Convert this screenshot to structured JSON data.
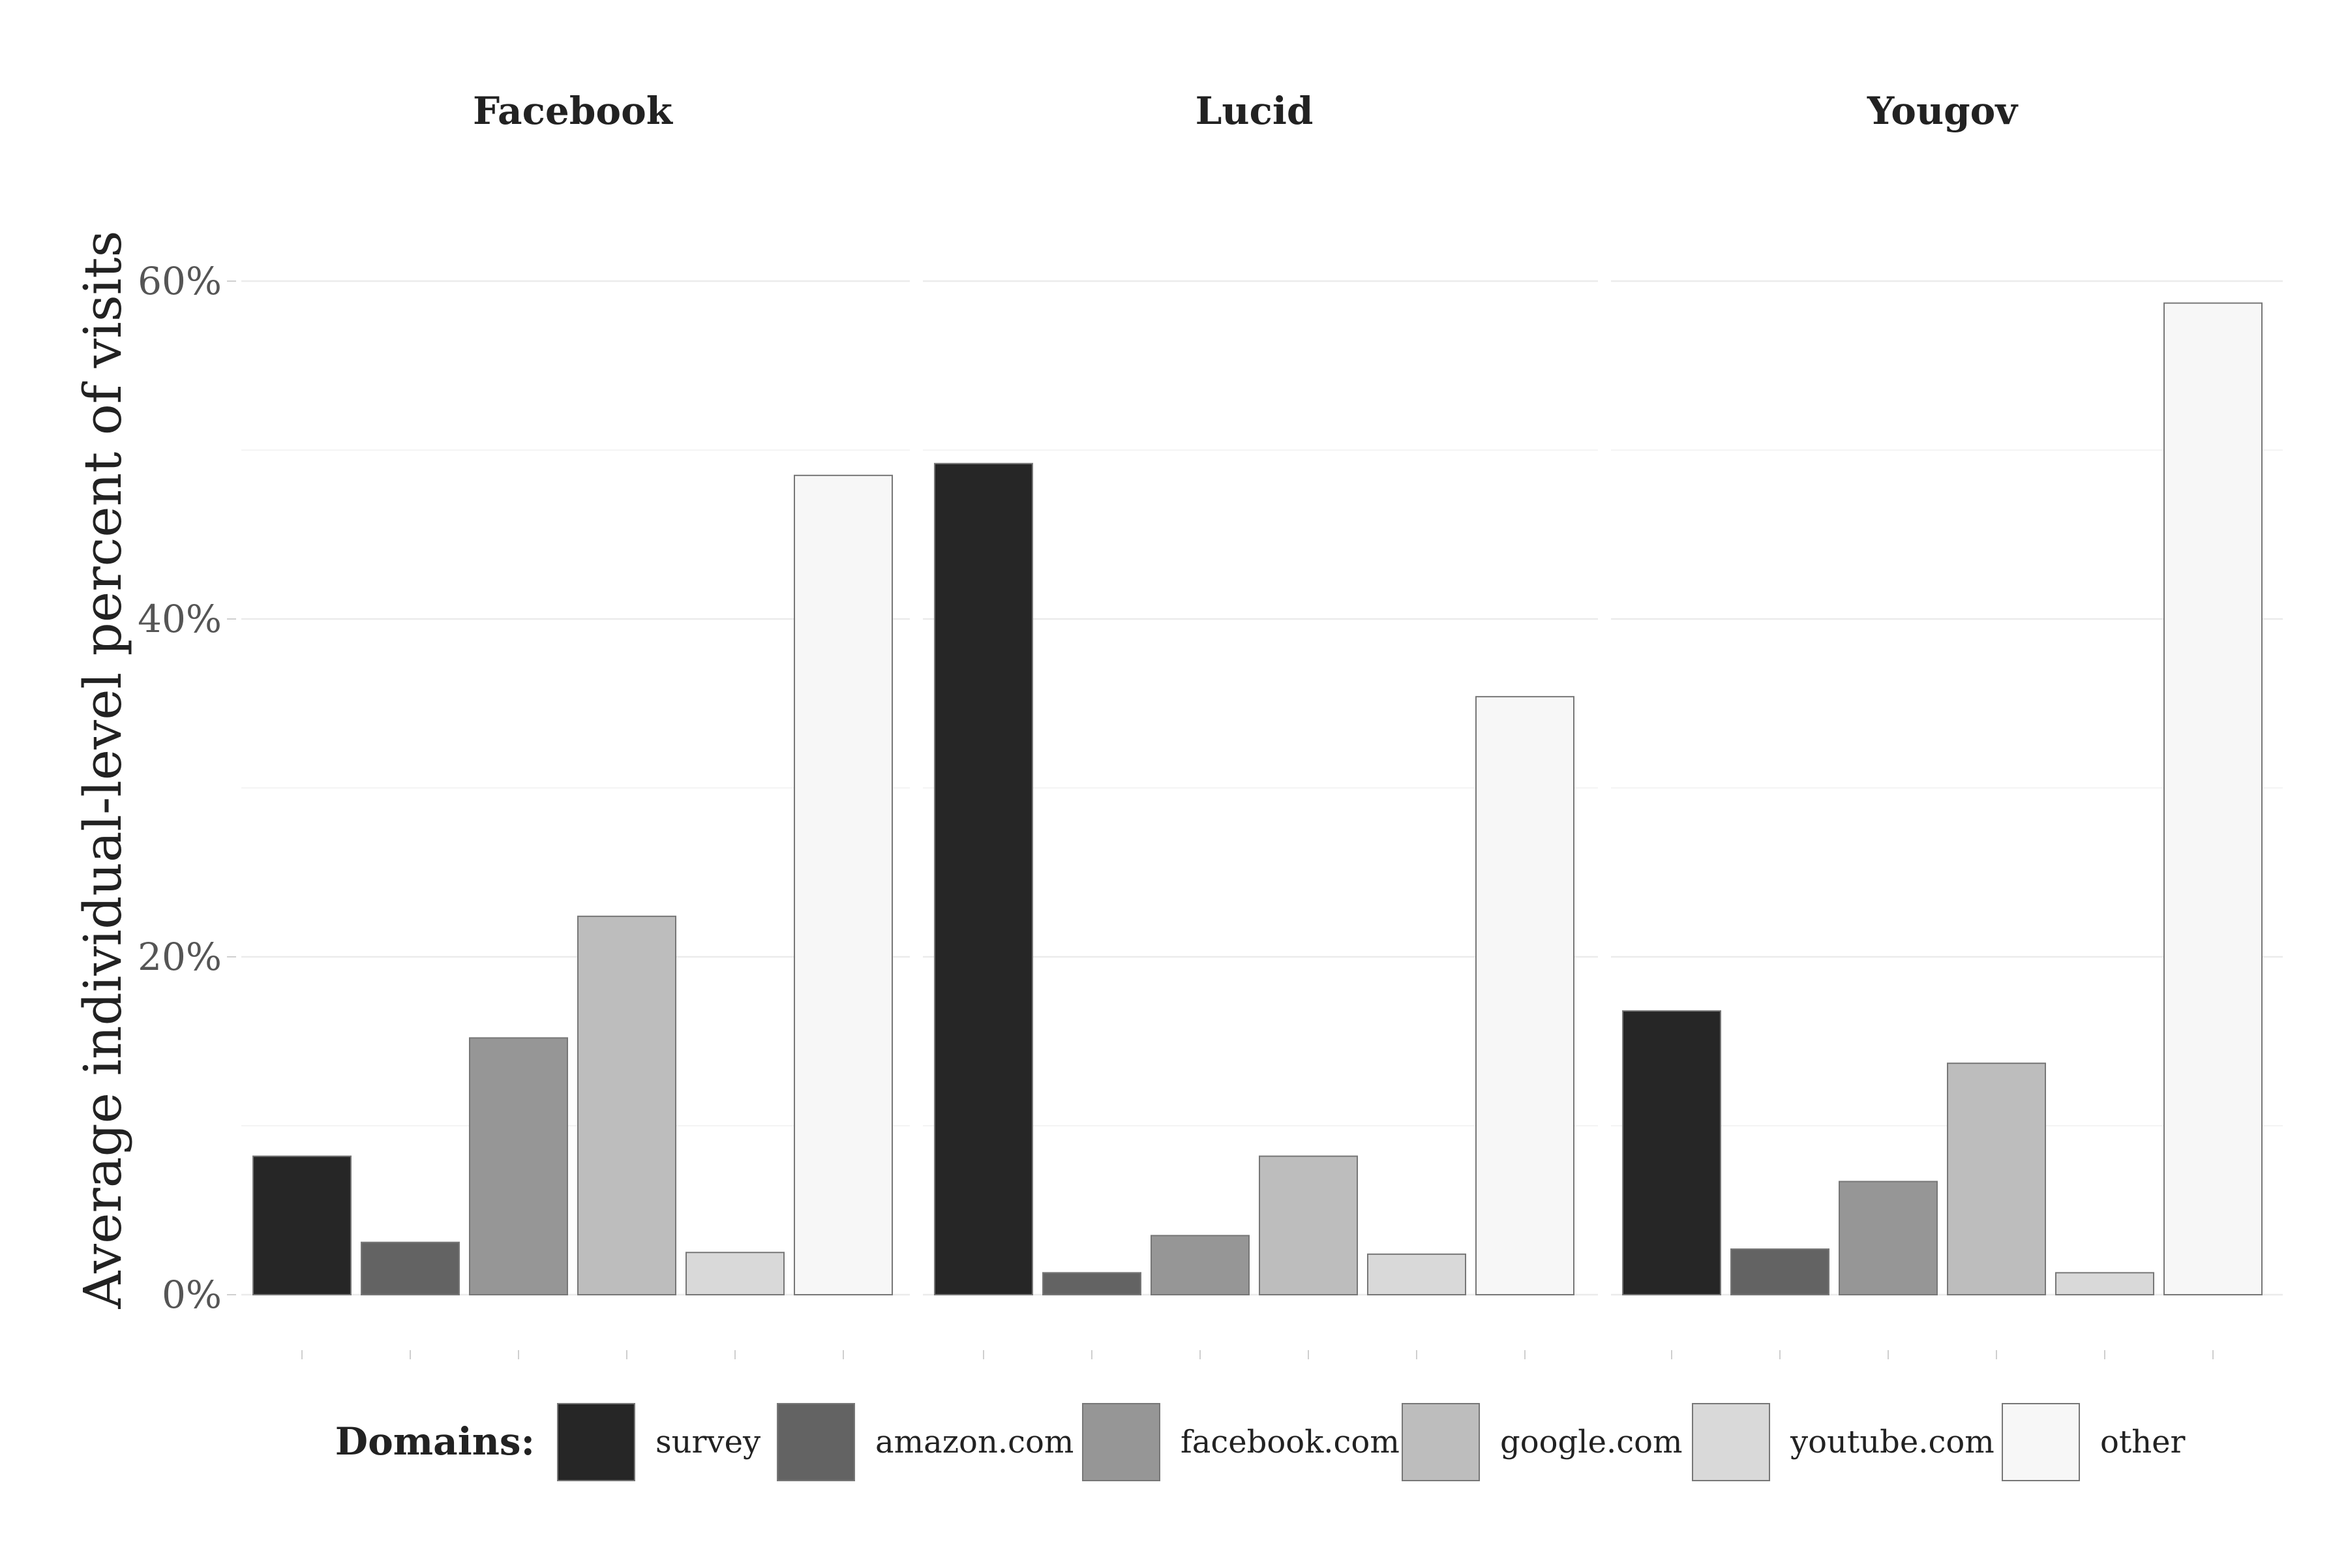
{
  "chart_data": {
    "type": "bar",
    "ylabel": "Average individual-level percent of visits",
    "ylim": [
      0,
      65
    ],
    "y_ticks": [
      "0%",
      "20%",
      "40%",
      "60%"
    ],
    "grid": true,
    "legend_position": "bottom",
    "legend_title": "Domains:",
    "categories": [
      "survey",
      "amazon.com",
      "facebook.com",
      "google.com",
      "youtube.com",
      "other"
    ],
    "colors": {
      "survey": "#262626",
      "amazon.com": "#636363",
      "facebook.com": "#969696",
      "google.com": "#bdbdbd",
      "youtube.com": "#d9d9d9",
      "other": "#f7f7f7"
    },
    "facets": [
      {
        "title": "Facebook",
        "values": [
          8.2,
          3.1,
          15.2,
          22.4,
          2.5,
          48.5
        ]
      },
      {
        "title": "Lucid",
        "values": [
          49.2,
          1.3,
          3.5,
          8.2,
          2.4,
          35.4
        ]
      },
      {
        "title": "Yougov",
        "values": [
          16.8,
          2.7,
          6.7,
          13.7,
          1.3,
          58.7
        ]
      }
    ]
  }
}
